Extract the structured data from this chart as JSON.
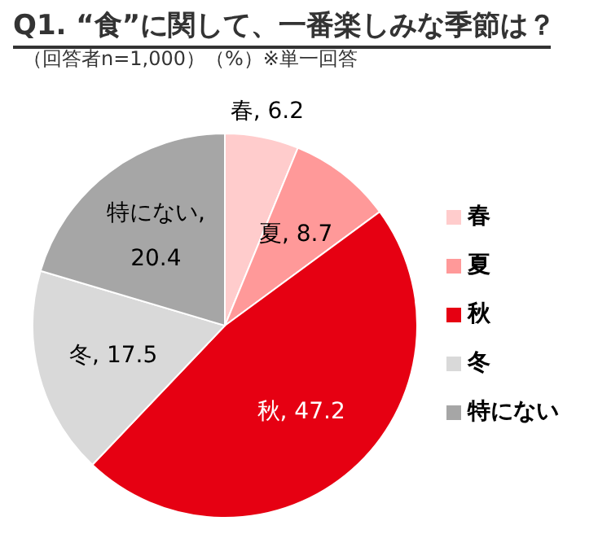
{
  "chart_data": {
    "type": "pie",
    "title": "Q1. “食”に関して、一番楽しみな季節は？",
    "subtitle": "（回答者n=1,000）（%）※単一回答",
    "categories": [
      "春",
      "夏",
      "秋",
      "冬",
      "特にない"
    ],
    "values": [
      6.2,
      8.7,
      47.2,
      17.5,
      20.4
    ],
    "colors": [
      "#ffcccc",
      "#ff9999",
      "#e60012",
      "#d9d9d9",
      "#a6a6a6"
    ],
    "value_labels": [
      "春, 6.2",
      "夏, 8.7",
      "秋, 47.2",
      "冬, 17.5",
      "特にない, 20.4"
    ],
    "legend": "right"
  }
}
